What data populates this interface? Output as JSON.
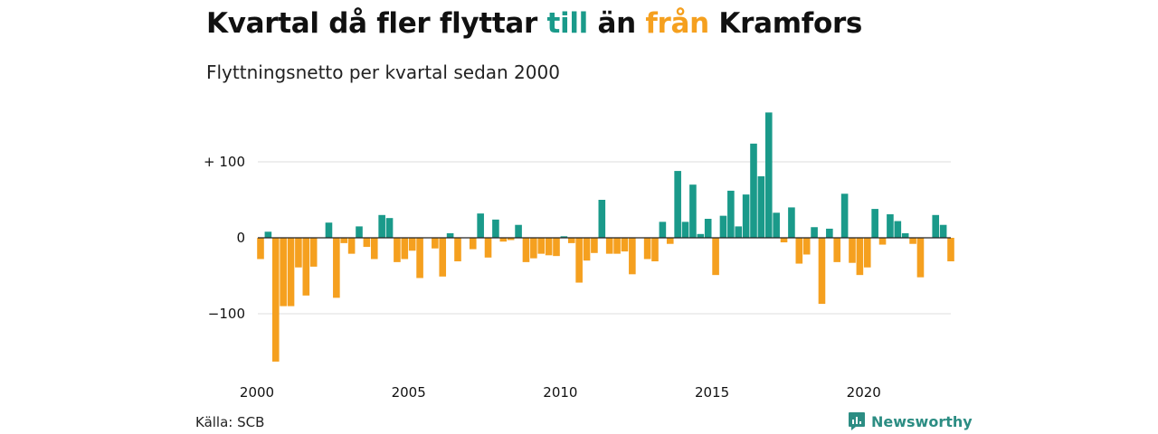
{
  "title": {
    "part1": "Kvartal då fler flyttar ",
    "word_in": "till",
    "part2": " än ",
    "word_out": "från",
    "part3": " Kramfors"
  },
  "subtitle": "Flyttningsnetto per kvartal sedan 2000",
  "source": "Källa: SCB",
  "brand": "Newsworthy",
  "colors": {
    "positive": "#1a9a8a",
    "negative": "#f5a01f",
    "brand": "#2c8d83"
  },
  "chart_data": {
    "type": "bar",
    "title": "Kvartal då fler flyttar till än från Kramfors",
    "subtitle": "Flyttningsnetto per kvartal sedan 2000",
    "x_start_year": 2000,
    "periods_per_year": 4,
    "x_ticks": [
      2000,
      2005,
      2010,
      2015,
      2020
    ],
    "y_ticks": [
      {
        "value": 100,
        "label": "+ 100"
      },
      {
        "value": 0,
        "label": "0"
      },
      {
        "value": -100,
        "label": "−100"
      }
    ],
    "ylim": [
      -165,
      165
    ],
    "grid": true,
    "values": [
      -28,
      8,
      -163,
      -90,
      -90,
      -39,
      -76,
      -38,
      0,
      20,
      -79,
      -7,
      -21,
      15,
      -12,
      -28,
      30,
      26,
      -32,
      -28,
      -17,
      -53,
      0,
      -14,
      -51,
      6,
      -31,
      0,
      -15,
      32,
      -26,
      24,
      -5,
      -3,
      17,
      -32,
      -27,
      -21,
      -23,
      -24,
      2,
      -7,
      -59,
      -30,
      -20,
      50,
      -21,
      -21,
      -18,
      -48,
      0,
      -28,
      -31,
      21,
      -8,
      88,
      21,
      70,
      5,
      25,
      -49,
      29,
      62,
      15,
      57,
      124,
      81,
      165,
      33,
      -6,
      40,
      -34,
      -22,
      14,
      -87,
      12,
      -32,
      58,
      -33,
      -49,
      -39,
      38,
      -9,
      31,
      22,
      6,
      -8,
      -52,
      0,
      30,
      17,
      -31
    ]
  }
}
